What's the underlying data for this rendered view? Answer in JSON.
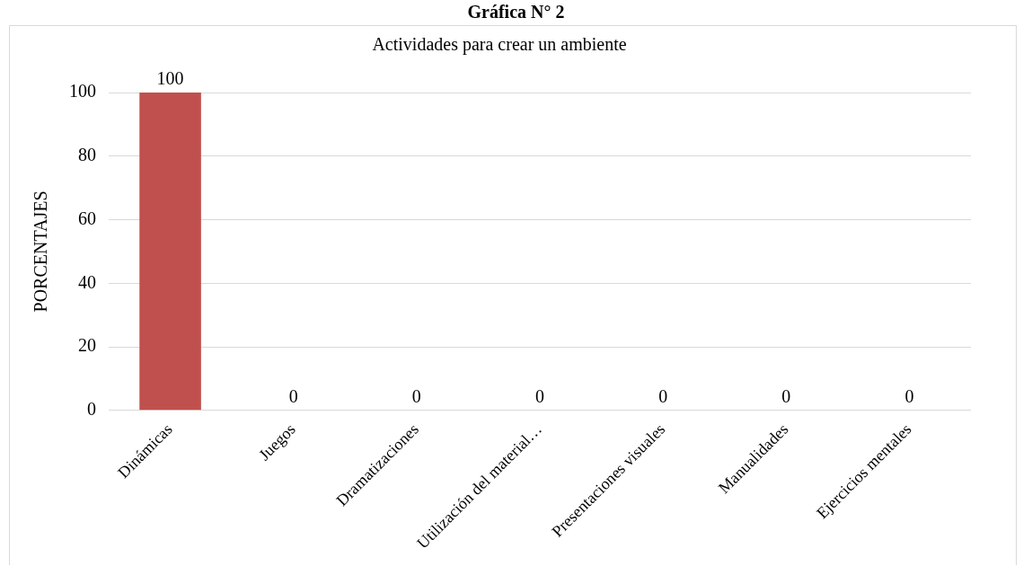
{
  "chart_data": {
    "type": "bar",
    "title": "Actividades para crear un ambiente",
    "ylabel": "PORCENTAJES",
    "annotations": [
      "Gráfica N° 2"
    ],
    "categories": [
      "Dinámicas",
      "Juegos",
      "Dramatizaciones",
      "Utilización del material…",
      "Presentaciones visuales",
      "Manualidades",
      "Ejercicios mentales"
    ],
    "values": [
      100,
      0,
      0,
      0,
      0,
      0,
      0
    ],
    "color": "#c0504d",
    "ylim": [
      0,
      100
    ],
    "yticks": [
      0,
      20,
      40,
      60,
      80,
      100
    ],
    "grid": "y",
    "legend": false,
    "data_labels": true
  }
}
